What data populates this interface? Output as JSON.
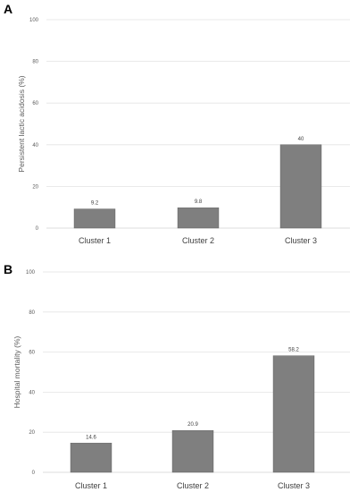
{
  "colors": {
    "bar": "#7f7f7f",
    "bar_stroke": "#595959"
  },
  "chart_data": [
    {
      "panel": "A",
      "type": "bar",
      "ylabel": "Persistent lactic acidosis (%)",
      "ylim": [
        0,
        100
      ],
      "yticks": [
        0,
        20,
        40,
        60,
        80,
        100
      ],
      "grid": true,
      "categories": [
        "Cluster 1",
        "Cluster 2",
        "Cluster 3"
      ],
      "values": [
        9.2,
        9.8,
        40
      ],
      "data_labels": [
        "9.2",
        "9.8",
        "40"
      ]
    },
    {
      "panel": "B",
      "type": "bar",
      "ylabel": "Hospital mortality (%)",
      "ylim": [
        0,
        100
      ],
      "yticks": [
        0,
        20,
        40,
        60,
        80,
        100
      ],
      "grid": true,
      "categories": [
        "Cluster 1",
        "Cluster 2",
        "Cluster 3"
      ],
      "values": [
        14.6,
        20.9,
        58.2
      ],
      "data_labels": [
        "14.6",
        "20.9",
        "58.2"
      ]
    }
  ]
}
